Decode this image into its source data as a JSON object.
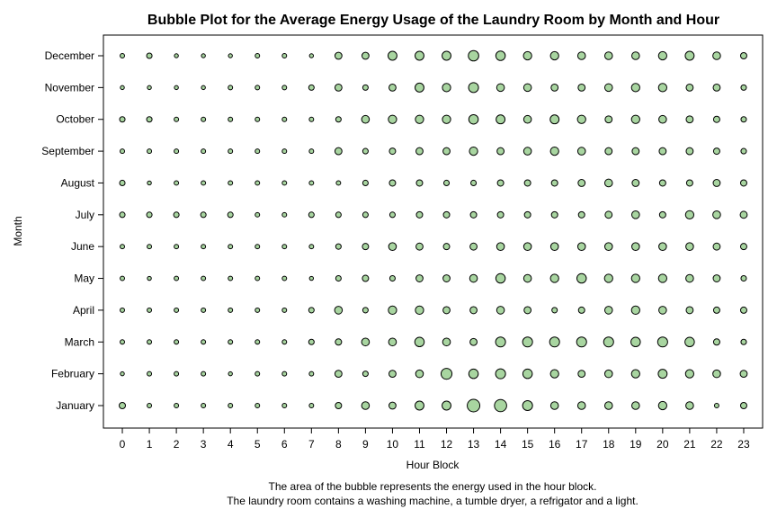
{
  "chart_data": {
    "type": "scatter",
    "title": "Bubble Plot for the Average Energy Usage of the Laundry Room by Month and Hour",
    "xlabel": "Hour Block",
    "ylabel": "Month",
    "x": [
      0,
      1,
      2,
      3,
      4,
      5,
      6,
      7,
      8,
      9,
      10,
      11,
      12,
      13,
      14,
      15,
      16,
      17,
      18,
      19,
      20,
      21,
      22,
      23
    ],
    "categories": [
      "January",
      "February",
      "March",
      "April",
      "May",
      "June",
      "July",
      "August",
      "September",
      "October",
      "November",
      "December"
    ],
    "xlim": [
      -0.7,
      23.7
    ],
    "grid": false,
    "legend": "none",
    "bubble_color": "#a8d5a0",
    "bubble_edge": "#000000",
    "size_unit": "relative energy (bubble area)",
    "series": [
      {
        "values": [
          2.0,
          1.0,
          1.0,
          1.0,
          1.0,
          1.0,
          1.0,
          1.0,
          2.0,
          3.0,
          2.5,
          4.0,
          4.0,
          8.0,
          7.5,
          5.0,
          3.0,
          3.0,
          3.0,
          3.0,
          3.5,
          3.0,
          1.0,
          2.0
        ]
      },
      {
        "values": [
          0.8,
          1.0,
          1.0,
          1.0,
          0.8,
          1.0,
          1.0,
          1.0,
          2.5,
          1.5,
          2.5,
          3.0,
          6.0,
          4.5,
          5.0,
          4.5,
          3.5,
          2.5,
          3.0,
          3.5,
          4.0,
          3.5,
          3.0,
          2.5
        ]
      },
      {
        "values": [
          1.0,
          1.0,
          1.0,
          1.0,
          1.0,
          1.0,
          1.0,
          1.5,
          2.0,
          3.0,
          3.0,
          4.5,
          3.0,
          2.5,
          5.0,
          5.0,
          5.0,
          5.0,
          5.0,
          4.5,
          5.0,
          4.5,
          2.0,
          1.5
        ]
      },
      {
        "values": [
          1.0,
          1.0,
          1.0,
          1.0,
          1.0,
          1.0,
          1.0,
          1.5,
          3.0,
          1.5,
          3.5,
          3.5,
          2.5,
          2.5,
          3.0,
          2.5,
          1.5,
          2.0,
          3.0,
          3.5,
          3.0,
          2.5,
          2.0,
          2.0
        ]
      },
      {
        "values": [
          1.0,
          0.8,
          1.0,
          1.0,
          1.0,
          1.0,
          1.0,
          0.8,
          1.5,
          2.0,
          1.5,
          2.5,
          2.5,
          3.0,
          4.5,
          3.0,
          3.5,
          4.5,
          3.5,
          3.5,
          3.5,
          3.0,
          2.5,
          1.5
        ]
      },
      {
        "values": [
          1.0,
          1.0,
          1.0,
          1.0,
          1.0,
          1.0,
          1.0,
          1.0,
          1.5,
          2.0,
          3.0,
          2.5,
          2.0,
          2.5,
          3.0,
          3.0,
          3.0,
          3.0,
          3.0,
          3.0,
          3.0,
          3.0,
          2.5,
          2.0
        ]
      },
      {
        "values": [
          1.5,
          1.5,
          1.5,
          1.5,
          1.5,
          1.0,
          1.0,
          1.5,
          1.5,
          1.5,
          1.5,
          2.0,
          2.0,
          2.0,
          2.0,
          2.0,
          2.0,
          2.0,
          2.5,
          3.0,
          2.0,
          3.5,
          3.0,
          2.5
        ]
      },
      {
        "values": [
          1.5,
          0.8,
          1.0,
          1.0,
          1.0,
          1.0,
          1.0,
          1.0,
          1.0,
          1.5,
          2.0,
          2.0,
          1.5,
          1.5,
          2.0,
          2.0,
          2.0,
          2.5,
          3.0,
          2.5,
          2.0,
          2.0,
          2.5,
          2.0
        ]
      },
      {
        "values": [
          1.0,
          1.0,
          1.0,
          1.0,
          1.0,
          1.0,
          1.0,
          1.0,
          2.5,
          1.5,
          2.0,
          2.5,
          2.5,
          3.5,
          2.5,
          3.0,
          3.5,
          3.0,
          2.5,
          2.5,
          2.5,
          2.5,
          2.0,
          1.5
        ]
      },
      {
        "values": [
          1.5,
          1.5,
          1.0,
          1.0,
          1.0,
          1.0,
          1.0,
          1.0,
          1.5,
          3.0,
          3.5,
          3.5,
          3.5,
          4.5,
          4.0,
          3.0,
          4.0,
          3.5,
          2.5,
          3.5,
          3.0,
          2.5,
          2.0,
          1.5
        ]
      },
      {
        "values": [
          0.8,
          0.8,
          0.8,
          0.8,
          1.0,
          1.0,
          1.0,
          1.5,
          2.5,
          1.5,
          2.5,
          4.0,
          3.5,
          5.0,
          3.0,
          3.0,
          2.5,
          2.5,
          3.0,
          3.5,
          3.5,
          2.5,
          2.5,
          1.5
        ]
      },
      {
        "values": [
          1.0,
          1.5,
          0.8,
          0.8,
          0.8,
          1.0,
          1.0,
          0.8,
          2.5,
          2.5,
          4.0,
          4.0,
          4.0,
          5.5,
          4.5,
          3.5,
          3.5,
          3.0,
          3.0,
          3.0,
          3.5,
          4.0,
          3.0,
          2.0
        ]
      }
    ]
  },
  "footnotes": [
    "The area of the bubble represents the energy used in the hour block.",
    "The laundry room contains a washing machine, a tumble dryer, a refrigator and a light."
  ]
}
